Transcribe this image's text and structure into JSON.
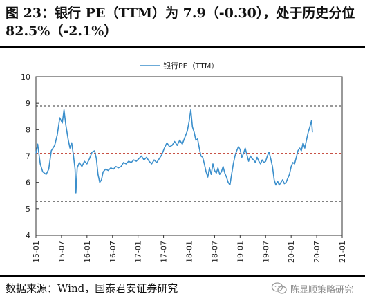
{
  "figure": {
    "title": "图 23：银行 PE（TTM）为 7.9（-0.30），处于历史分位 82.5%（-2.1%）",
    "source": "数据来源：Wind，国泰君安证券研究",
    "watermark": "陈显顺策略研究",
    "watermark_icon": "wechat-icon"
  },
  "chart_data": {
    "type": "line",
    "legend": "银行PE（TTM）",
    "legend_position": "top-center",
    "series": [
      {
        "name": "银行PE（TTM）",
        "color": "#3b8fcc",
        "points": [
          [
            0,
            7.1
          ],
          [
            0.2,
            7.45
          ],
          [
            0.5,
            6.7
          ],
          [
            0.8,
            6.4
          ],
          [
            1.2,
            6.3
          ],
          [
            1.5,
            6.5
          ],
          [
            1.8,
            7.2
          ],
          [
            2.2,
            7.4
          ],
          [
            2.5,
            7.8
          ],
          [
            2.8,
            8.45
          ],
          [
            3.1,
            8.25
          ],
          [
            3.3,
            8.75
          ],
          [
            3.5,
            8.2
          ],
          [
            3.8,
            7.6
          ],
          [
            4.0,
            7.3
          ],
          [
            4.2,
            7.5
          ],
          [
            4.4,
            7.05
          ],
          [
            4.6,
            6.5
          ],
          [
            4.7,
            5.6
          ],
          [
            4.85,
            6.55
          ],
          [
            5.1,
            6.75
          ],
          [
            5.4,
            6.6
          ],
          [
            5.7,
            6.8
          ],
          [
            6.0,
            6.7
          ],
          [
            6.3,
            6.9
          ],
          [
            6.6,
            7.15
          ],
          [
            6.9,
            7.2
          ],
          [
            7.1,
            6.9
          ],
          [
            7.3,
            6.3
          ],
          [
            7.5,
            6.0
          ],
          [
            7.7,
            6.1
          ],
          [
            7.9,
            6.4
          ],
          [
            8.2,
            6.5
          ],
          [
            8.5,
            6.45
          ],
          [
            8.8,
            6.55
          ],
          [
            9.1,
            6.5
          ],
          [
            9.4,
            6.6
          ],
          [
            9.7,
            6.55
          ],
          [
            10.0,
            6.6
          ],
          [
            10.3,
            6.75
          ],
          [
            10.6,
            6.7
          ],
          [
            10.9,
            6.8
          ],
          [
            11.2,
            6.75
          ],
          [
            11.5,
            6.85
          ],
          [
            11.8,
            6.8
          ],
          [
            12.1,
            6.9
          ],
          [
            12.4,
            7.0
          ],
          [
            12.7,
            6.85
          ],
          [
            13.0,
            6.95
          ],
          [
            13.3,
            6.8
          ],
          [
            13.6,
            6.7
          ],
          [
            13.9,
            6.85
          ],
          [
            14.2,
            6.75
          ],
          [
            14.5,
            6.9
          ],
          [
            14.8,
            7.05
          ],
          [
            15.1,
            7.3
          ],
          [
            15.4,
            7.5
          ],
          [
            15.7,
            7.35
          ],
          [
            16.0,
            7.4
          ],
          [
            16.3,
            7.55
          ],
          [
            16.6,
            7.4
          ],
          [
            16.9,
            7.6
          ],
          [
            17.2,
            7.45
          ],
          [
            17.5,
            7.7
          ],
          [
            17.8,
            7.95
          ],
          [
            18.0,
            8.3
          ],
          [
            18.2,
            8.75
          ],
          [
            18.4,
            8.1
          ],
          [
            18.6,
            7.9
          ],
          [
            18.8,
            7.6
          ],
          [
            19.0,
            7.65
          ],
          [
            19.2,
            7.3
          ],
          [
            19.4,
            7.0
          ],
          [
            19.6,
            6.95
          ],
          [
            19.8,
            6.7
          ],
          [
            20.0,
            6.4
          ],
          [
            20.2,
            6.2
          ],
          [
            20.4,
            6.55
          ],
          [
            20.6,
            6.3
          ],
          [
            20.8,
            6.7
          ],
          [
            21.0,
            6.45
          ],
          [
            21.2,
            6.35
          ],
          [
            21.4,
            6.55
          ],
          [
            21.6,
            6.3
          ],
          [
            21.8,
            6.4
          ],
          [
            22.0,
            6.6
          ],
          [
            22.2,
            6.35
          ],
          [
            22.4,
            6.2
          ],
          [
            22.6,
            6.0
          ],
          [
            22.8,
            5.9
          ],
          [
            23.0,
            6.3
          ],
          [
            23.2,
            6.7
          ],
          [
            23.4,
            7.0
          ],
          [
            23.6,
            7.2
          ],
          [
            23.8,
            7.35
          ],
          [
            24.0,
            7.25
          ],
          [
            24.2,
            6.95
          ],
          [
            24.4,
            7.1
          ],
          [
            24.6,
            7.3
          ],
          [
            24.8,
            7.05
          ],
          [
            25.0,
            6.8
          ],
          [
            25.2,
            7.0
          ],
          [
            25.4,
            6.9
          ],
          [
            25.6,
            6.85
          ],
          [
            25.8,
            6.75
          ],
          [
            26.0,
            6.95
          ],
          [
            26.2,
            6.8
          ],
          [
            26.4,
            6.7
          ],
          [
            26.6,
            6.85
          ],
          [
            26.8,
            6.75
          ],
          [
            27.0,
            6.8
          ],
          [
            27.2,
            7.0
          ],
          [
            27.4,
            7.15
          ],
          [
            27.6,
            6.9
          ],
          [
            27.8,
            6.6
          ],
          [
            28.0,
            6.1
          ],
          [
            28.2,
            5.9
          ],
          [
            28.4,
            6.05
          ],
          [
            28.6,
            5.9
          ],
          [
            28.8,
            6.0
          ],
          [
            29.0,
            6.1
          ],
          [
            29.2,
            5.95
          ],
          [
            29.4,
            6.0
          ],
          [
            29.6,
            6.15
          ],
          [
            29.8,
            6.3
          ],
          [
            30.0,
            6.6
          ],
          [
            30.2,
            6.75
          ],
          [
            30.4,
            6.7
          ],
          [
            30.6,
            6.95
          ],
          [
            30.8,
            7.2
          ],
          [
            31.0,
            7.3
          ],
          [
            31.2,
            7.2
          ],
          [
            31.4,
            7.5
          ],
          [
            31.6,
            7.3
          ],
          [
            31.8,
            7.6
          ],
          [
            32.0,
            7.9
          ],
          [
            32.2,
            8.1
          ],
          [
            32.4,
            8.35
          ],
          [
            32.5,
            7.9
          ]
        ]
      }
    ],
    "reference_lines": [
      {
        "value": 8.9,
        "style": "dashed",
        "color": "#333333"
      },
      {
        "value": 7.1,
        "style": "dashed",
        "color": "#c0392b"
      },
      {
        "value": 5.28,
        "style": "dashed",
        "color": "#333333"
      }
    ],
    "x_tick_labels": [
      "15-01",
      "15-07",
      "16-01",
      "16-07",
      "17-01",
      "17-07",
      "18-01",
      "18-07",
      "19-01",
      "19-07",
      "20-01",
      "20-07",
      "21-01"
    ],
    "x_tick_values": [
      0,
      3,
      6,
      9,
      12,
      15,
      18,
      21,
      24,
      27,
      30,
      33,
      36
    ],
    "x_range": [
      0,
      36
    ],
    "ylim": [
      4,
      10
    ],
    "y_ticks": [
      4,
      5,
      6,
      7,
      8,
      9,
      10
    ],
    "grid": false
  }
}
